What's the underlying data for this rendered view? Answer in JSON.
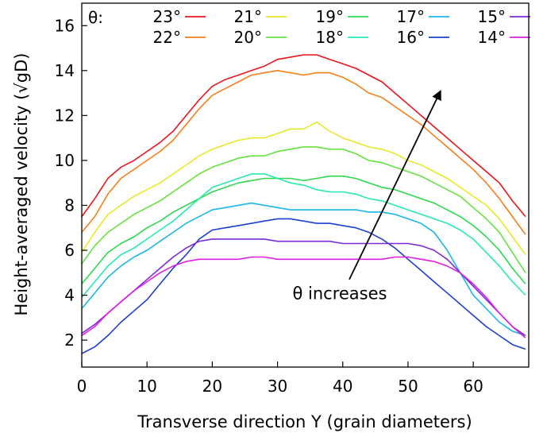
{
  "chart_data": {
    "type": "line",
    "xlabel": "Transverse direction Y (grain diameters)",
    "ylabel": "Height-averaged velocity (√gD)",
    "xlim": [
      0,
      68.5
    ],
    "ylim": [
      0.8,
      17.0
    ],
    "xticks": [
      0,
      10,
      20,
      30,
      40,
      50,
      60
    ],
    "yticks": [
      2,
      4,
      6,
      8,
      10,
      12,
      14,
      16
    ],
    "legend": {
      "title": "θ:",
      "placement": "top",
      "columns": 5
    },
    "annotation": {
      "text": "θ increases",
      "arrow_from": [
        41,
        4.7
      ],
      "arrow_to": [
        55,
        13.1
      ]
    },
    "x": [
      0,
      2,
      4,
      6,
      8,
      10,
      12,
      14,
      16,
      18,
      20,
      22,
      24,
      26,
      28,
      30,
      32,
      34,
      36,
      38,
      40,
      42,
      44,
      46,
      48,
      50,
      52,
      54,
      56,
      58,
      60,
      62,
      64,
      66,
      68
    ],
    "series": [
      {
        "name": "23°",
        "color": "#e8141c",
        "values": [
          7.5,
          8.3,
          9.2,
          9.7,
          10.0,
          10.4,
          10.8,
          11.3,
          12.0,
          12.7,
          13.3,
          13.6,
          13.8,
          14.0,
          14.2,
          14.5,
          14.6,
          14.7,
          14.7,
          14.5,
          14.3,
          14.1,
          13.8,
          13.5,
          13.0,
          12.5,
          12.0,
          11.5,
          11.0,
          10.5,
          10.0,
          9.5,
          9.0,
          8.2,
          7.5
        ]
      },
      {
        "name": "22°",
        "color": "#f57f1a",
        "values": [
          6.8,
          7.5,
          8.5,
          9.2,
          9.6,
          10.0,
          10.4,
          10.9,
          11.6,
          12.3,
          12.9,
          13.2,
          13.5,
          13.8,
          13.9,
          14.0,
          13.9,
          13.8,
          13.9,
          13.9,
          13.7,
          13.4,
          13.0,
          12.8,
          12.4,
          12.0,
          11.6,
          11.1,
          10.6,
          10.1,
          9.6,
          9.0,
          8.3,
          7.5,
          6.7
        ]
      },
      {
        "name": "21°",
        "color": "#e8e82a",
        "values": [
          5.9,
          6.8,
          7.6,
          8.0,
          8.4,
          8.7,
          9.0,
          9.4,
          9.8,
          10.2,
          10.5,
          10.7,
          10.9,
          11.0,
          11.0,
          11.2,
          11.4,
          11.4,
          11.7,
          11.3,
          11.0,
          10.8,
          10.6,
          10.5,
          10.3,
          10.0,
          9.8,
          9.5,
          9.2,
          8.8,
          8.4,
          8.0,
          7.4,
          6.6,
          5.8
        ]
      },
      {
        "name": "20°",
        "color": "#66e23f",
        "values": [
          5.4,
          6.2,
          6.8,
          7.2,
          7.6,
          7.9,
          8.2,
          8.6,
          9.0,
          9.4,
          9.7,
          9.9,
          10.1,
          10.2,
          10.2,
          10.4,
          10.5,
          10.6,
          10.6,
          10.5,
          10.5,
          10.3,
          10.0,
          9.9,
          9.7,
          9.5,
          9.3,
          9.0,
          8.7,
          8.4,
          7.9,
          7.4,
          6.8,
          5.9,
          5.0
        ]
      },
      {
        "name": "19°",
        "color": "#2ed84e",
        "values": [
          4.5,
          5.2,
          5.9,
          6.3,
          6.6,
          7.0,
          7.3,
          7.7,
          8.0,
          8.3,
          8.6,
          8.8,
          9.0,
          9.1,
          9.2,
          9.2,
          9.2,
          9.1,
          9.2,
          9.3,
          9.3,
          9.2,
          9.0,
          8.8,
          8.7,
          8.5,
          8.3,
          8.1,
          7.8,
          7.5,
          7.1,
          6.6,
          6.0,
          5.2,
          4.5
        ]
      },
      {
        "name": "18°",
        "color": "#28e8b4",
        "values": [
          3.9,
          4.6,
          5.3,
          5.8,
          6.1,
          6.5,
          6.9,
          7.3,
          7.8,
          8.3,
          8.8,
          9.0,
          9.2,
          9.4,
          9.4,
          9.2,
          9.0,
          8.9,
          8.7,
          8.6,
          8.6,
          8.5,
          8.3,
          8.2,
          8.0,
          7.8,
          7.6,
          7.4,
          7.2,
          6.9,
          6.5,
          5.9,
          5.3,
          4.6,
          4.0
        ]
      },
      {
        "name": "17°",
        "color": "#1ab6e8",
        "values": [
          3.4,
          4.1,
          4.8,
          5.3,
          5.7,
          6.0,
          6.4,
          6.8,
          7.2,
          7.5,
          7.8,
          7.9,
          8.0,
          8.1,
          8.0,
          7.9,
          7.8,
          7.8,
          7.8,
          7.8,
          7.8,
          7.8,
          7.7,
          7.7,
          7.6,
          7.4,
          7.2,
          6.8,
          6.0,
          5.0,
          4.0,
          3.4,
          2.8,
          2.4,
          2.2
        ]
      },
      {
        "name": "16°",
        "color": "#1c3fd0",
        "values": [
          1.4,
          1.7,
          2.2,
          2.8,
          3.3,
          3.8,
          4.5,
          5.2,
          5.8,
          6.5,
          6.9,
          7.0,
          7.1,
          7.2,
          7.3,
          7.4,
          7.4,
          7.3,
          7.2,
          7.2,
          7.1,
          7.0,
          6.8,
          6.5,
          6.1,
          5.6,
          5.1,
          4.6,
          4.1,
          3.6,
          3.1,
          2.6,
          2.2,
          1.8,
          1.6
        ]
      },
      {
        "name": "15°",
        "color": "#7a2cd6",
        "values": [
          2.3,
          2.7,
          3.2,
          3.7,
          4.2,
          4.7,
          5.2,
          5.7,
          6.1,
          6.4,
          6.5,
          6.5,
          6.5,
          6.5,
          6.5,
          6.4,
          6.4,
          6.4,
          6.4,
          6.4,
          6.3,
          6.3,
          6.3,
          6.3,
          6.3,
          6.3,
          6.2,
          6.0,
          5.6,
          5.0,
          4.4,
          3.8,
          3.2,
          2.6,
          2.2
        ]
      },
      {
        "name": "14°",
        "color": "#e01ee0",
        "values": [
          2.2,
          2.6,
          3.2,
          3.7,
          4.2,
          4.6,
          5.0,
          5.3,
          5.5,
          5.6,
          5.6,
          5.6,
          5.6,
          5.7,
          5.7,
          5.6,
          5.6,
          5.6,
          5.6,
          5.6,
          5.6,
          5.6,
          5.6,
          5.6,
          5.7,
          5.7,
          5.6,
          5.5,
          5.3,
          5.0,
          4.5,
          3.9,
          3.2,
          2.6,
          2.1
        ]
      }
    ]
  }
}
